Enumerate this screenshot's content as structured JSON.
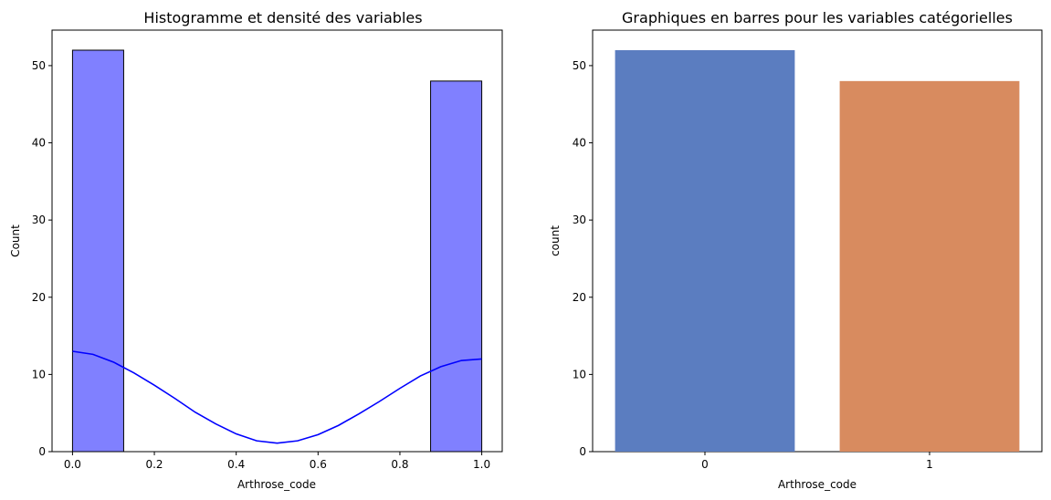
{
  "chart_data": [
    {
      "type": "bar",
      "title": "Histogramme et densité des variables",
      "xlabel": "Arthrose_code",
      "ylabel": "Count",
      "xlim": [
        -0.05,
        1.05
      ],
      "ylim": [
        0,
        54.6
      ],
      "xticks": [
        "0.0",
        "0.2",
        "0.4",
        "0.6",
        "0.8",
        "1.0"
      ],
      "xtick_values": [
        0,
        0.2,
        0.4,
        0.6,
        0.8,
        1.0
      ],
      "yticks": [
        0,
        10,
        20,
        30,
        40,
        50
      ],
      "bins": [
        {
          "x0": 0.0,
          "x1": 0.125,
          "count": 52
        },
        {
          "x0": 0.875,
          "x1": 1.0,
          "count": 48
        }
      ],
      "kde": {
        "x": [
          0.0,
          0.05,
          0.1,
          0.15,
          0.2,
          0.25,
          0.3,
          0.35,
          0.4,
          0.45,
          0.5,
          0.55,
          0.6,
          0.65,
          0.7,
          0.75,
          0.8,
          0.85,
          0.9,
          0.95,
          1.0
        ],
        "y": [
          13.0,
          12.6,
          11.6,
          10.2,
          8.6,
          6.9,
          5.1,
          3.6,
          2.3,
          1.4,
          1.1,
          1.4,
          2.2,
          3.4,
          4.9,
          6.5,
          8.2,
          9.8,
          11.0,
          11.8,
          12.0
        ]
      },
      "colors": {
        "bar_fill": "#8080ff",
        "bar_edge": "#000000",
        "kde": "#0000ff"
      }
    },
    {
      "type": "bar",
      "title": "Graphiques en barres pour les variables catégorielles",
      "xlabel": "Arthrose_code",
      "ylabel": "count",
      "categories": [
        "0",
        "1"
      ],
      "values": [
        52,
        48
      ],
      "ylim": [
        0,
        54.6
      ],
      "yticks": [
        0,
        10,
        20,
        30,
        40,
        50
      ],
      "colors": [
        "#5b7dc0",
        "#d88b5f"
      ]
    }
  ]
}
